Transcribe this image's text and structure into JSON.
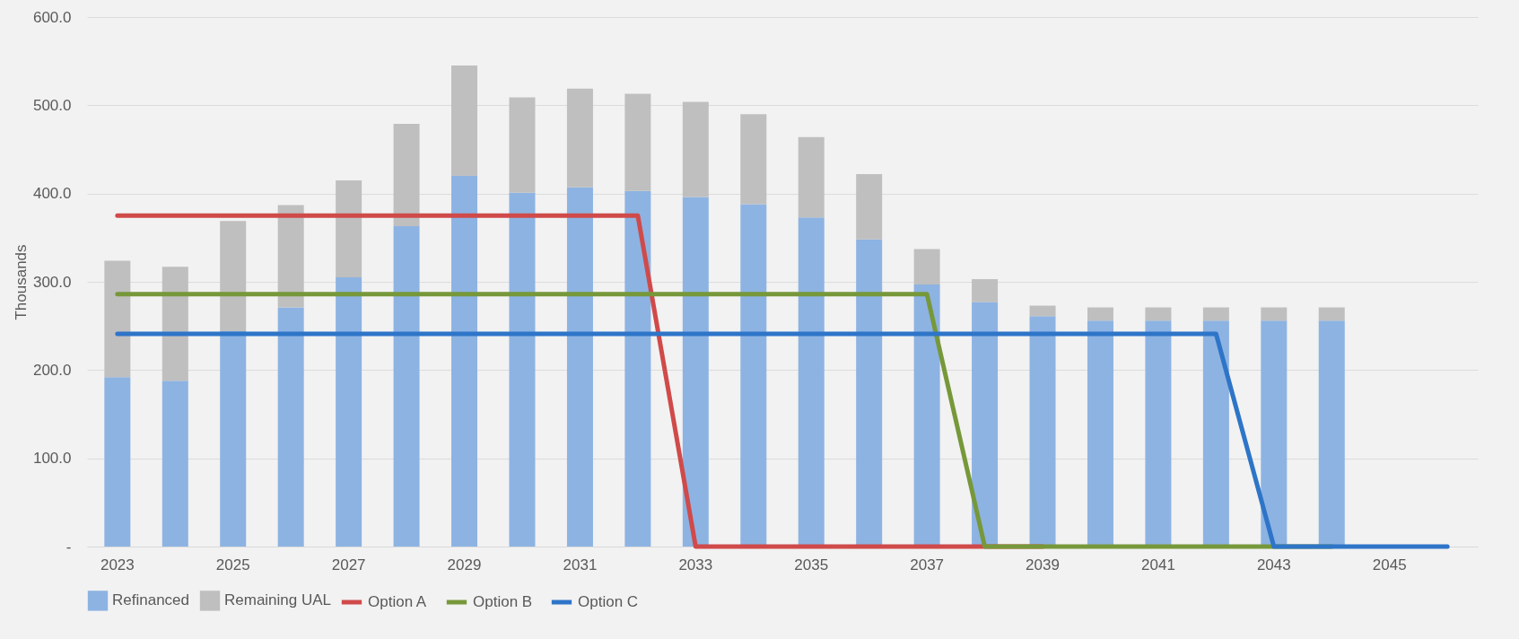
{
  "chart_data": {
    "type": "bar",
    "stacked": true,
    "ylabel": "Thousands",
    "categories": [
      "2023",
      null,
      "2025",
      null,
      "2027",
      null,
      "2029",
      null,
      "2031",
      null,
      "2033",
      null,
      "2035",
      null,
      "2037",
      null,
      "2039",
      null,
      "2041",
      null,
      "2043",
      null,
      "2045",
      null
    ],
    "series": [
      {
        "name": "Refinanced",
        "color": "#8db3e2",
        "values": [
          192,
          188,
          244,
          271,
          305,
          363,
          420,
          401,
          407,
          403,
          396,
          388,
          373,
          348,
          297,
          277,
          261,
          256,
          256,
          256,
          256,
          256,
          null,
          null
        ]
      },
      {
        "name": "Remaining UAL",
        "color": "#bfbfbf",
        "values": [
          132,
          129,
          125,
          116,
          110,
          116,
          125,
          108,
          112,
          110,
          108,
          102,
          91,
          74,
          40,
          26,
          12,
          15,
          15,
          15,
          15,
          15,
          null,
          null
        ]
      },
      {
        "name": "Option A",
        "type": "line",
        "color": "#d04a4a",
        "values": [
          375,
          375,
          375,
          375,
          375,
          375,
          375,
          375,
          375,
          375,
          0,
          0,
          0,
          0,
          0,
          0,
          0,
          null,
          null,
          null,
          null,
          null,
          null,
          null
        ]
      },
      {
        "name": "Option B",
        "type": "line",
        "color": "#77983a",
        "values": [
          286,
          286,
          286,
          286,
          286,
          286,
          286,
          286,
          286,
          286,
          286,
          286,
          286,
          286,
          286,
          0,
          0,
          0,
          0,
          0,
          0,
          0,
          null,
          null
        ]
      },
      {
        "name": "Option C",
        "type": "line",
        "color": "#2e75c8",
        "values": [
          241,
          241,
          241,
          241,
          241,
          241,
          241,
          241,
          241,
          241,
          241,
          241,
          241,
          241,
          241,
          241,
          241,
          241,
          241,
          241,
          0,
          0,
          0,
          0
        ]
      }
    ],
    "ylim": [
      0,
      600
    ],
    "yticks": [
      {
        "value": 0,
        "label": "-"
      },
      {
        "value": 100,
        "label": "100.0"
      },
      {
        "value": 200,
        "label": "200.0"
      },
      {
        "value": 300,
        "label": "300.0"
      },
      {
        "value": 400,
        "label": "400.0"
      },
      {
        "value": 500,
        "label": "500.0"
      },
      {
        "value": 600,
        "label": "600.0"
      }
    ],
    "grid": "y",
    "legend": "bottom",
    "line_style": "solid"
  }
}
